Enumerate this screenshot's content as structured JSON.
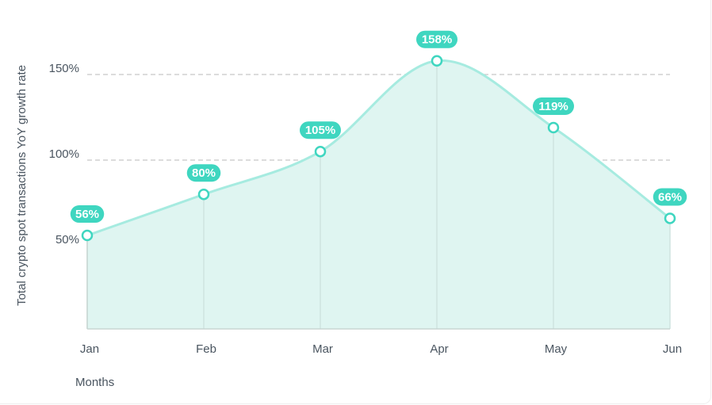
{
  "chart_data": {
    "type": "area",
    "y_label": "Total crypto spot transactions YoY growth rate",
    "x_label": "Months",
    "categories": [
      "Jan",
      "Feb",
      "Mar",
      "Apr",
      "May",
      "Jun"
    ],
    "values": [
      56,
      80,
      105,
      158,
      119,
      66
    ],
    "value_labels": [
      "56%",
      "80%",
      "105%",
      "158%",
      "119%",
      "66%"
    ],
    "color": "#3fd6c0",
    "ylim": [
      0,
      175
    ],
    "yticks": [
      {
        "value": 50,
        "label": "50%"
      },
      {
        "value": 100,
        "label": "100%"
      },
      {
        "value": 150,
        "label": "150%"
      }
    ],
    "grid": true
  }
}
